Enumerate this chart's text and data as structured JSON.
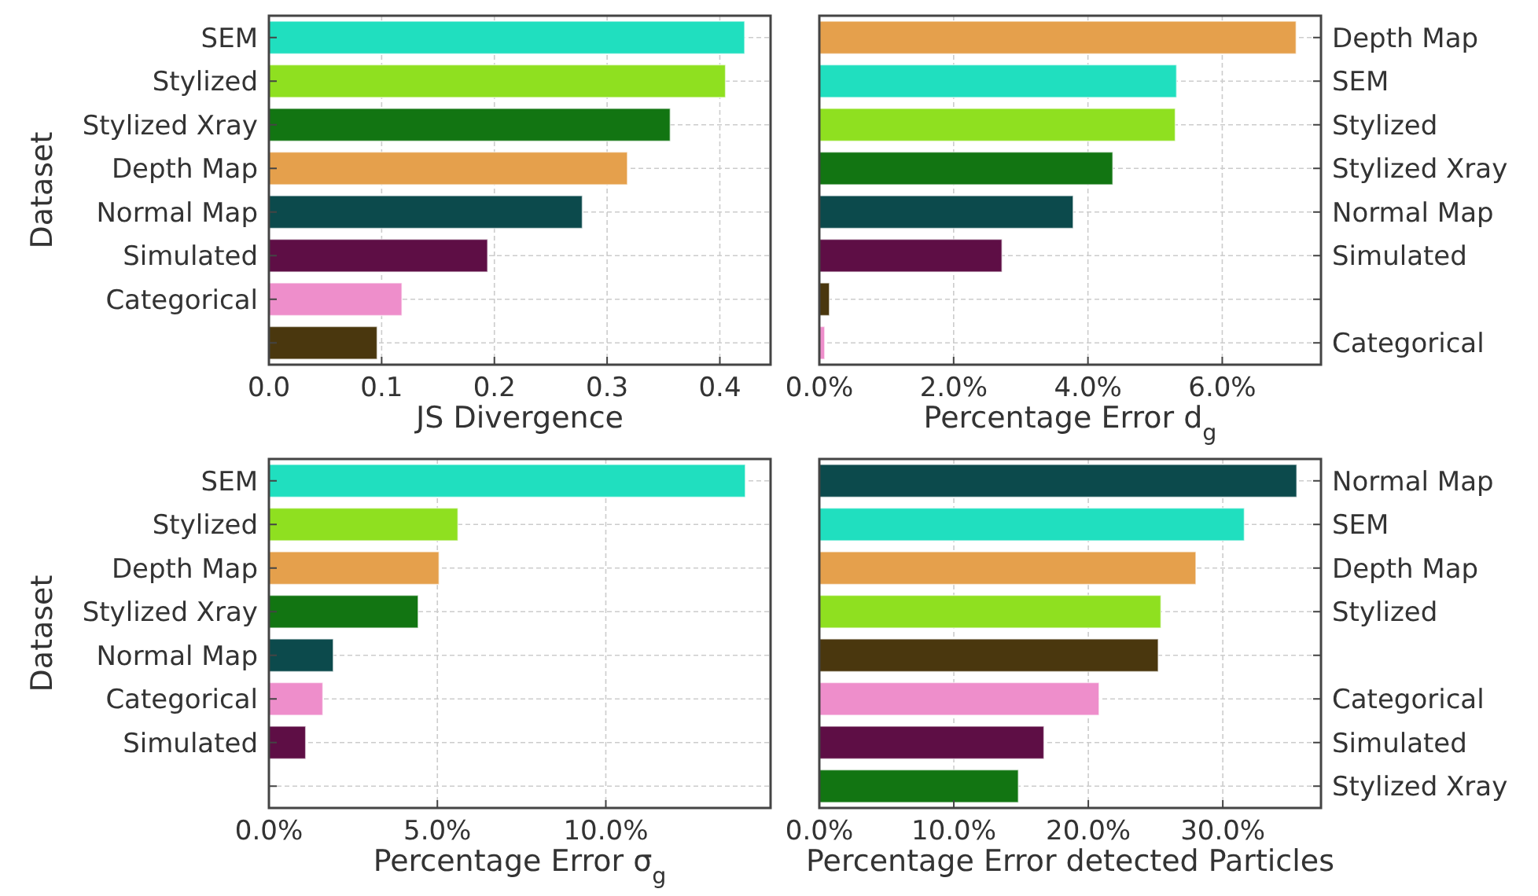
{
  "chart_data": [
    {
      "type": "bar",
      "orientation": "horizontal",
      "ylabel": "Dataset",
      "xlabel": "JS Divergence",
      "categories": [
        "SEM",
        "Stylized",
        "Stylized Xray",
        "Depth Map",
        "Normal Map",
        "Simulated",
        "Categorical",
        null
      ],
      "values": [
        0.422,
        0.405,
        0.356,
        0.318,
        0.278,
        0.194,
        0.118,
        0.096
      ],
      "colors": [
        "#20dfbf",
        "#8fe020",
        "#127512",
        "#e5a04c",
        "#0c4a4c",
        "#5e0e45",
        "#ee8ecb",
        "#4a370e"
      ],
      "xlim": [
        0,
        0.445
      ],
      "xticks": [
        {
          "value": 0,
          "label": "0.0"
        },
        {
          "value": 0.1,
          "label": "0.1"
        },
        {
          "value": 0.2,
          "label": "0.2"
        },
        {
          "value": 0.3,
          "label": "0.3"
        },
        {
          "value": 0.4,
          "label": "0.4"
        }
      ],
      "grid": true
    },
    {
      "type": "bar",
      "orientation": "horizontal",
      "xlabel": "Percentage Error d$_{g}$",
      "categories": [
        "Depth Map",
        "SEM",
        "Stylized",
        "Stylized Xray",
        "Normal Map",
        "Simulated",
        null,
        "Categorical"
      ],
      "values": [
        7.1,
        5.32,
        5.3,
        4.37,
        3.78,
        2.72,
        0.15,
        0.08
      ],
      "colors": [
        "#e5a04c",
        "#20dfbf",
        "#8fe020",
        "#127512",
        "#0c4a4c",
        "#5e0e45",
        "#4a370e",
        "#ee8ecb"
      ],
      "xlim": [
        0,
        7.47
      ],
      "xticks": [
        {
          "value": 0,
          "label": "0.0%"
        },
        {
          "value": 2,
          "label": "2.0%"
        },
        {
          "value": 4,
          "label": "4.0%"
        },
        {
          "value": 6,
          "label": "6.0%"
        }
      ],
      "grid": true
    },
    {
      "type": "bar",
      "orientation": "horizontal",
      "ylabel": "Dataset",
      "xlabel": "Percentage Error σ$_{g}$",
      "categories": [
        "SEM",
        "Stylized",
        "Depth Map",
        "Stylized Xray",
        "Normal Map",
        "Categorical",
        "Simulated",
        null
      ],
      "values": [
        14.14,
        5.61,
        5.05,
        4.43,
        1.91,
        1.6,
        1.09,
        0
      ],
      "colors": [
        "#20dfbf",
        "#8fe020",
        "#e5a04c",
        "#127512",
        "#0c4a4c",
        "#ee8ecb",
        "#5e0e45",
        "#4a370e"
      ],
      "xlim": [
        0,
        14.89
      ],
      "xticks": [
        {
          "value": 0,
          "label": "0.0%"
        },
        {
          "value": 5,
          "label": "5.0%"
        },
        {
          "value": 10,
          "label": "10.0%"
        }
      ],
      "grid": true
    },
    {
      "type": "bar",
      "orientation": "horizontal",
      "xlabel": "Percentage Error detected Particles",
      "categories": [
        "Normal Map",
        "SEM",
        "Depth Map",
        "Stylized",
        null,
        "Categorical",
        "Simulated",
        "Stylized Xray"
      ],
      "values": [
        35.5,
        31.6,
        28.0,
        25.4,
        25.2,
        20.8,
        16.7,
        14.8
      ],
      "colors": [
        "#0c4a4c",
        "#20dfbf",
        "#e5a04c",
        "#8fe020",
        "#4a370e",
        "#ee8ecb",
        "#5e0e45",
        "#127512"
      ],
      "xlim": [
        0,
        37.3
      ],
      "xticks": [
        {
          "value": 0,
          "label": "0.0%"
        },
        {
          "value": 10,
          "label": "10.0%"
        },
        {
          "value": 20,
          "label": "20.0%"
        },
        {
          "value": 30,
          "label": "30.0%"
        }
      ],
      "grid": true
    }
  ]
}
